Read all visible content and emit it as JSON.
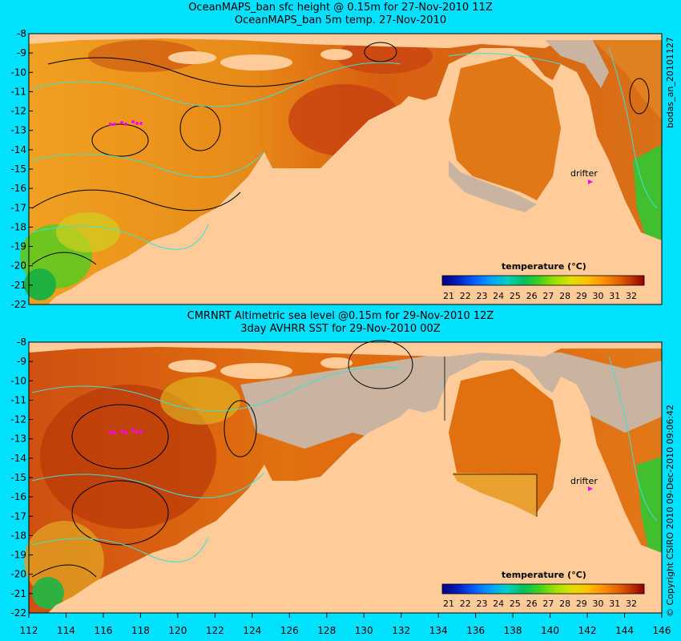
{
  "top_panel": {
    "title_line1": "OceanMAPS_ban sfc height @ 0.15m for 27-Nov-2010 11Z",
    "title_line2": "OceanMAPS_ban 5m temp. 27-Nov-2010",
    "side_label": "bodas_an_20101127",
    "legend_title": "temperature (°C)",
    "drifter_label": "drifter"
  },
  "bottom_panel": {
    "title_line1": "CMRNRT Altimetric sea level  @0.15m  for 29-Nov-2010 12Z",
    "title_line2": "3day AVHRR SST for 29-Nov-2010 00Z",
    "side_label": "© Copyright CSIRO 2010   09-Dec-2010 09:06:42",
    "legend_title": "temperature (°C)",
    "drifter_label": "drifter"
  },
  "axes": {
    "lat_ticks": [
      "-8",
      "-9",
      "-10",
      "-11",
      "-12",
      "-13",
      "-14",
      "-15",
      "-16",
      "-17",
      "-18",
      "-19",
      "-20",
      "-21",
      "-22"
    ],
    "lon_ticks": [
      "112",
      "114",
      "116",
      "118",
      "120",
      "122",
      "124",
      "126",
      "128",
      "130",
      "132",
      "134",
      "136",
      "138",
      "140",
      "142",
      "144",
      "146"
    ]
  },
  "legend_ticks": [
    "21",
    "22",
    "23",
    "24",
    "25",
    "26",
    "27",
    "28",
    "29",
    "30",
    "31",
    "32"
  ],
  "legend_colors": [
    "#000080",
    "#0020c0",
    "#0060ff",
    "#00a0ff",
    "#00d0c0",
    "#00c060",
    "#40d020",
    "#a0e000",
    "#e0e000",
    "#ffc000",
    "#ff9000",
    "#e06000",
    "#c03000",
    "#900000"
  ],
  "colors": {
    "background": "#00e0ff",
    "land": "#ffcc99",
    "missing": "#c8b4a0",
    "contour_black": "#000000",
    "contour_cyan": "#40e0d0",
    "drifter": "#ff00ff"
  }
}
